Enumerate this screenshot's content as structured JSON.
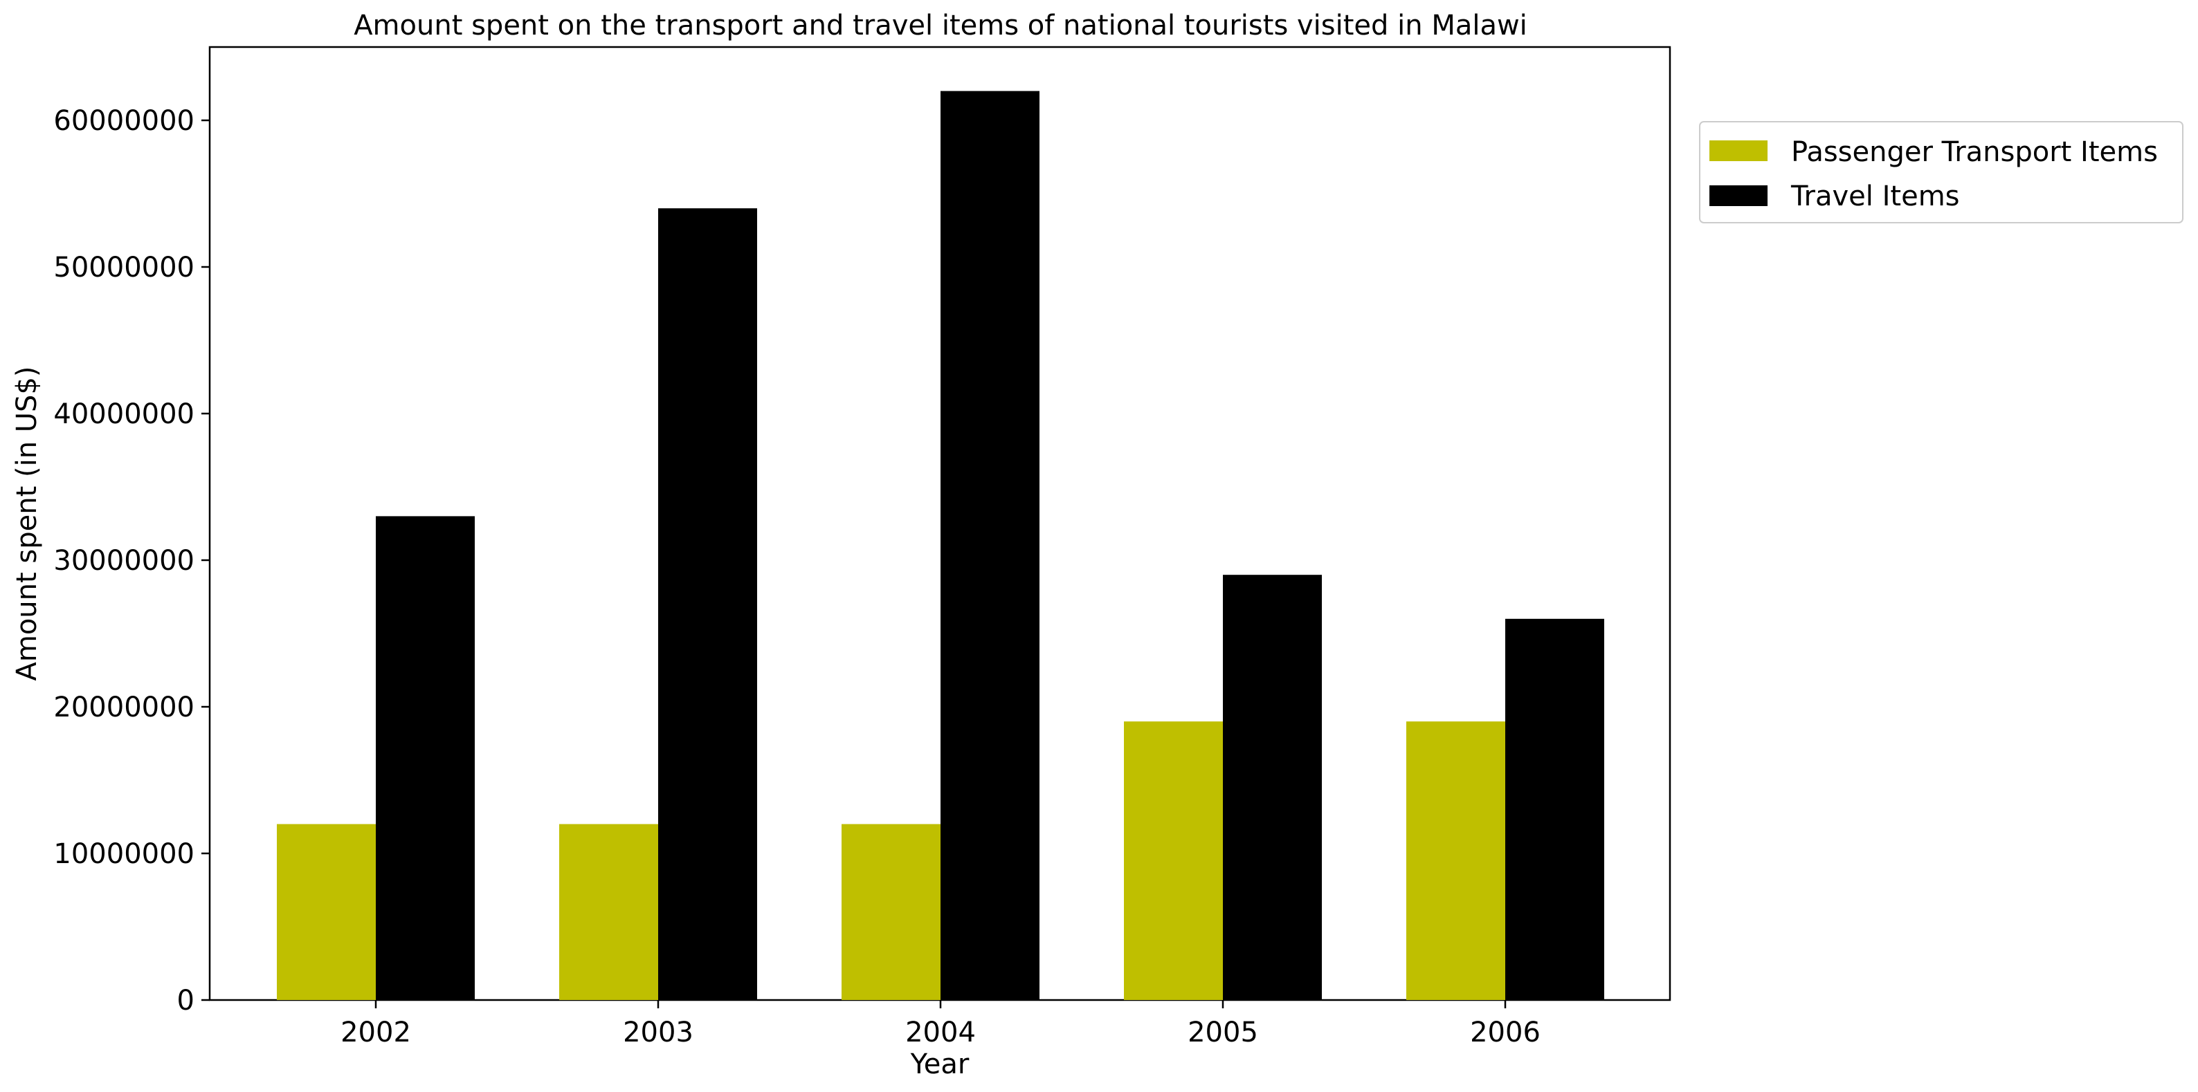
{
  "chart_data": {
    "type": "bar",
    "title": "Amount spent on the transport and travel items of national tourists visited in Malawi",
    "xlabel": "Year",
    "ylabel": "Amount spent (in US$)",
    "categories": [
      "2002",
      "2003",
      "2004",
      "2005",
      "2006"
    ],
    "series": [
      {
        "name": "Passenger Transport Items",
        "color": "#bfbf00",
        "values": [
          12000000,
          12000000,
          12000000,
          19000000,
          19000000
        ]
      },
      {
        "name": "Travel Items",
        "color": "#000000",
        "values": [
          33000000,
          54000000,
          62000000,
          29000000,
          26000000
        ]
      }
    ],
    "yticks": [
      0,
      10000000,
      20000000,
      30000000,
      40000000,
      50000000,
      60000000
    ],
    "ytick_labels": [
      "0",
      "10000000",
      "20000000",
      "30000000",
      "40000000",
      "50000000",
      "60000000"
    ],
    "ylim": [
      0,
      65000000
    ],
    "grid": false,
    "legend_position": "upper right, outside plot"
  }
}
